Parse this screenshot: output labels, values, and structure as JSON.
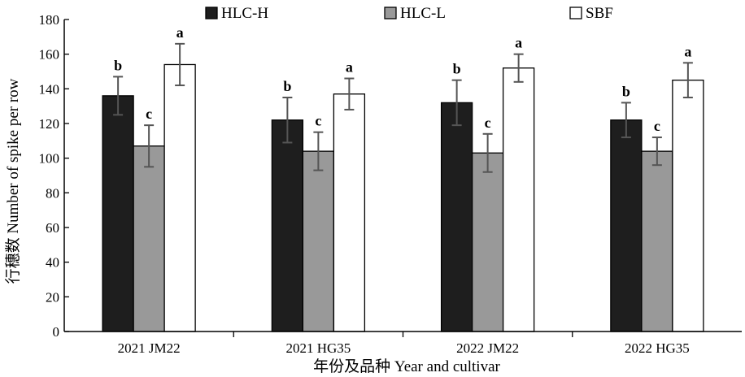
{
  "chart_data": {
    "type": "bar",
    "title": "",
    "xlabel": "年份及品种 Year and cultivar",
    "ylabel": "行穗数 Number of spike per row",
    "ylim": [
      0,
      180
    ],
    "yticks": [
      0,
      20,
      40,
      60,
      80,
      100,
      120,
      140,
      160,
      180
    ],
    "categories": [
      "2021 JM22",
      "2021 HG35",
      "2022 JM22",
      "2022 HG35"
    ],
    "legend_position": "top",
    "grid": false,
    "series": [
      {
        "name": "HLC-H",
        "color": "#1e1e1e",
        "values": [
          136,
          122,
          132,
          122
        ],
        "errors": [
          11,
          13,
          13,
          10
        ],
        "labels": [
          "b",
          "b",
          "b",
          "b"
        ]
      },
      {
        "name": "HLC-L",
        "color": "#999999",
        "values": [
          107,
          104,
          103,
          104
        ],
        "errors": [
          12,
          11,
          11,
          8
        ],
        "labels": [
          "c",
          "c",
          "c",
          "c"
        ]
      },
      {
        "name": "SBF",
        "color": "#ffffff",
        "values": [
          154,
          137,
          152,
          145
        ],
        "errors": [
          12,
          9,
          8,
          10
        ],
        "labels": [
          "a",
          "a",
          "a",
          "a"
        ]
      }
    ]
  }
}
